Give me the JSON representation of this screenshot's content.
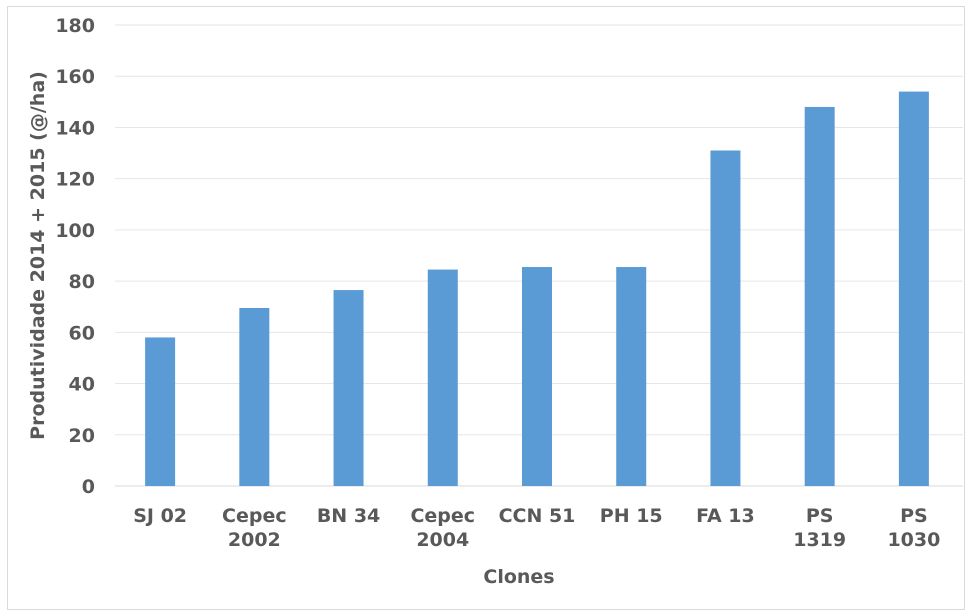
{
  "chart_data": {
    "type": "bar",
    "title": "",
    "xlabel": "Clones",
    "ylabel": "Produtividade 2014 + 2015 (@/ha)",
    "ylim": [
      0,
      180
    ],
    "yticks": [
      0,
      20,
      40,
      60,
      80,
      100,
      120,
      140,
      160,
      180
    ],
    "categories": [
      [
        "SJ 02"
      ],
      [
        "Cepec",
        "2002"
      ],
      [
        "BN 34"
      ],
      [
        "Cepec",
        "2004"
      ],
      [
        "CCN 51"
      ],
      [
        "PH 15"
      ],
      [
        "FA 13"
      ],
      [
        "PS",
        "1319"
      ],
      [
        "PS",
        "1030"
      ]
    ],
    "values": [
      58,
      69.5,
      76.5,
      84.5,
      85.5,
      85.5,
      131,
      148,
      154
    ],
    "bar_color": "#5b9bd5",
    "grid": true,
    "legend": "none"
  }
}
